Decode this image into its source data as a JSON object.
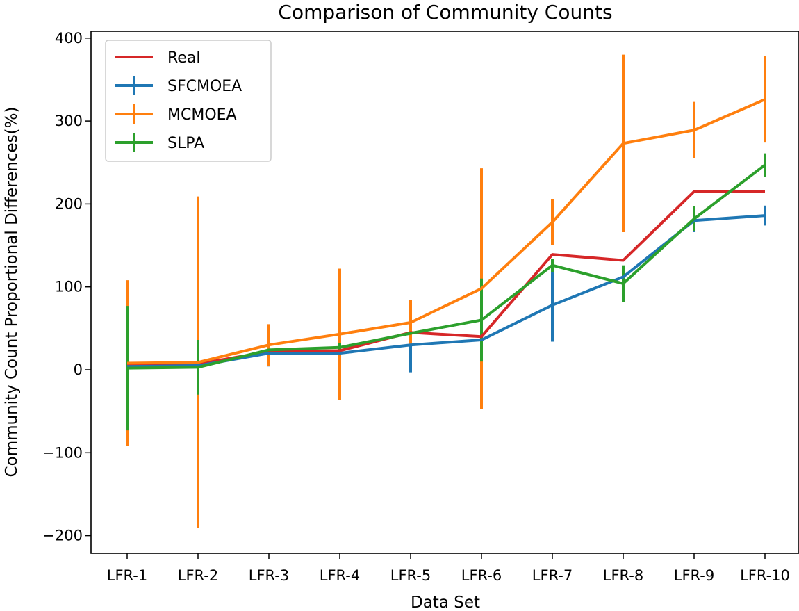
{
  "chart_data": {
    "type": "line",
    "title": "Comparison of Community Counts",
    "xlabel": "Data Set",
    "ylabel": "Community Count Proportional Differences(%)",
    "categories": [
      "LFR-1",
      "LFR-2",
      "LFR-3",
      "LFR-4",
      "LFR-5",
      "LFR-6",
      "LFR-7",
      "LFR-8",
      "LFR-9",
      "LFR-10"
    ],
    "ylim": [
      -220,
      405
    ],
    "yticks": [
      -200,
      -100,
      0,
      100,
      200,
      300,
      400
    ],
    "ytick_labels": [
      "−200",
      "−100",
      "0",
      "100",
      "200",
      "300",
      "400"
    ],
    "grid": false,
    "legend_position": "top-left",
    "series": [
      {
        "name": "Real",
        "color": "#d62728",
        "values": [
          5,
          7,
          22,
          23,
          45,
          40,
          139,
          132,
          215,
          215
        ]
      },
      {
        "name": "SFCMOEA",
        "color": "#1f77b4",
        "values": [
          4,
          5,
          20,
          20,
          30,
          36,
          78,
          112,
          180,
          186
        ],
        "error": [
          0,
          0,
          16,
          0,
          33,
          0,
          44,
          13,
          14,
          12
        ]
      },
      {
        "name": "MCMOEA",
        "color": "#ff7f0e",
        "values": [
          8,
          9,
          30,
          43,
          57,
          98,
          178,
          273,
          289,
          326
        ],
        "error": [
          100,
          200,
          25,
          79,
          27,
          145,
          28,
          107,
          34,
          52
        ]
      },
      {
        "name": "SLPA",
        "color": "#2ca02c",
        "values": [
          2,
          3,
          24,
          27,
          44,
          60,
          126,
          104,
          182,
          247
        ],
        "error": [
          75,
          33,
          0,
          5,
          0,
          50,
          8,
          22,
          15,
          14
        ]
      }
    ]
  }
}
